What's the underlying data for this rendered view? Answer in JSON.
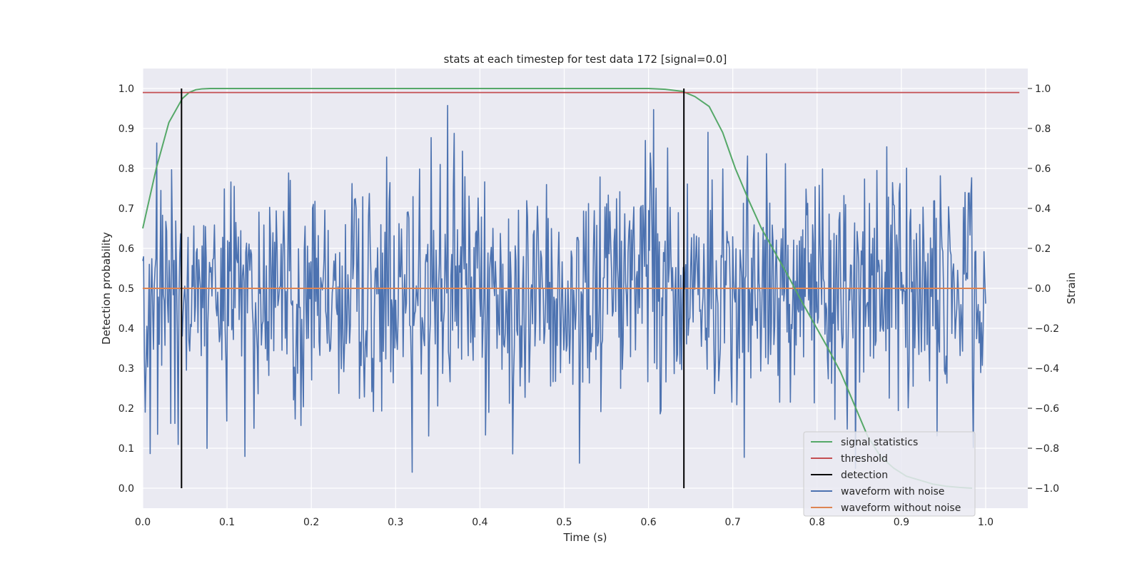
{
  "chart_data": {
    "type": "line",
    "title": "stats at each timestep for test data 172 [signal=0.0]",
    "xlabel": "Time (s)",
    "ylabel_left": "Detection probability",
    "ylabel_right": "Strain",
    "xlim": [
      0.0,
      1.05
    ],
    "ylim_left": [
      -0.05,
      1.05
    ],
    "ylim_right": [
      -1.1,
      1.1
    ],
    "x_ticks": [
      "0.0",
      "0.1",
      "0.2",
      "0.3",
      "0.4",
      "0.5",
      "0.6",
      "0.7",
      "0.8",
      "0.9",
      "1.0"
    ],
    "y_ticks_left": [
      "0.0",
      "0.1",
      "0.2",
      "0.3",
      "0.4",
      "0.5",
      "0.6",
      "0.7",
      "0.8",
      "0.9",
      "1.0"
    ],
    "y_ticks_right": [
      "−1.0",
      "−0.8",
      "−0.6",
      "−0.4",
      "−0.2",
      "0.0",
      "0.2",
      "0.4",
      "0.6",
      "0.8",
      "1.0"
    ],
    "grid": true,
    "legend_position": "bottom-right",
    "series": [
      {
        "name": "signal statistics",
        "axis": "left",
        "color": "#55a868",
        "x": [
          0.0,
          0.016,
          0.031,
          0.047,
          0.055,
          0.063,
          0.07,
          0.08,
          0.1,
          0.2,
          0.3,
          0.4,
          0.5,
          0.6,
          0.62,
          0.64,
          0.655,
          0.672,
          0.688,
          0.703,
          0.719,
          0.734,
          0.75,
          0.766,
          0.781,
          0.797,
          0.813,
          0.828,
          0.844,
          0.86,
          0.875,
          0.891,
          0.906,
          0.922,
          0.938,
          0.953,
          0.969,
          0.984
        ],
        "y": [
          0.65,
          0.8,
          0.915,
          0.975,
          0.99,
          0.997,
          0.999,
          1.0,
          1.0,
          1.0,
          1.0,
          1.0,
          1.0,
          1.0,
          0.998,
          0.993,
          0.98,
          0.955,
          0.89,
          0.8,
          0.72,
          0.65,
          0.59,
          0.53,
          0.47,
          0.41,
          0.35,
          0.29,
          0.21,
          0.13,
          0.08,
          0.05,
          0.03,
          0.02,
          0.01,
          0.005,
          0.002,
          0.0
        ]
      },
      {
        "name": "threshold",
        "axis": "left",
        "color": "#c44e52",
        "x": [
          0.0,
          1.04
        ],
        "y": [
          0.99,
          0.99
        ]
      },
      {
        "name": "detection",
        "axis": "left",
        "color": "#000000",
        "type": "vlines",
        "x": [
          0.046,
          0.642
        ],
        "y": [
          0.0,
          1.0
        ]
      },
      {
        "name": "waveform with noise",
        "axis": "right",
        "color": "#4c72b0",
        "x_range": [
          0.0,
          1.0
        ],
        "n_points": 1024,
        "y_mean": 0.0,
        "y_extent": [
          -0.92,
          1.0
        ],
        "y_std": 0.3
      },
      {
        "name": "waveform without noise",
        "axis": "right",
        "color": "#dd8452",
        "x": [
          0.0,
          1.0
        ],
        "y": [
          0.0,
          0.0
        ]
      }
    ]
  }
}
